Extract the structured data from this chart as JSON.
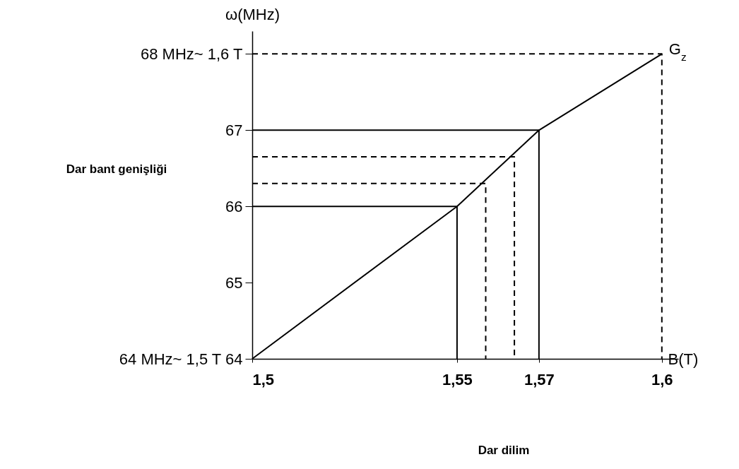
{
  "chart_data": {
    "type": "line",
    "xlabel": "B(T)",
    "ylabel": "ω(MHz)",
    "xlim": [
      1.5,
      1.604
    ],
    "xticks": [
      {
        "value": 1.5,
        "label": "1,5"
      },
      {
        "value": 1.55,
        "label": "1,55"
      },
      {
        "value": 1.57,
        "label": "1,57"
      },
      {
        "value": 1.6,
        "label": "1,6"
      }
    ],
    "ylim": [
      64,
      68.3
    ],
    "yticks": [
      {
        "value": 64,
        "label": "64 MHz~ 1,5 T   64"
      },
      65,
      66,
      67,
      {
        "value": 68,
        "label": "68 MHz~ 1,6 T"
      }
    ],
    "grid": false,
    "series": [
      {
        "color": "#000000",
        "line_style": "solid",
        "x": [
          1.5,
          1.55,
          1.57,
          1.6
        ],
        "values": [
          64,
          66,
          67,
          68
        ]
      },
      {
        "color": "#000000",
        "line_style": "solid",
        "x": [
          1.5,
          1.55,
          1.55
        ],
        "values": [
          66,
          66,
          64
        ]
      },
      {
        "color": "#000000",
        "line_style": "solid",
        "x": [
          1.5,
          1.57,
          1.57
        ],
        "values": [
          67,
          67,
          64
        ]
      },
      {
        "color": "#000000",
        "line_style": "dashed",
        "x": [
          1.5,
          1.6,
          1.6
        ],
        "values": [
          68,
          68,
          64
        ]
      },
      {
        "color": "#000000",
        "line_style": "dashed",
        "x": [
          1.5,
          1.564,
          1.564
        ],
        "values": [
          66.65,
          66.65,
          64
        ]
      },
      {
        "color": "#000000",
        "line_style": "dashed",
        "x": [
          1.5,
          1.557,
          1.557
        ],
        "values": [
          66.3,
          66.3,
          64
        ]
      }
    ],
    "annotations": [
      {
        "text": "G$_{z}$",
        "x": 1.6,
        "y": 68
      },
      "Dar bant genişliği",
      "Dar dilim"
    ]
  }
}
